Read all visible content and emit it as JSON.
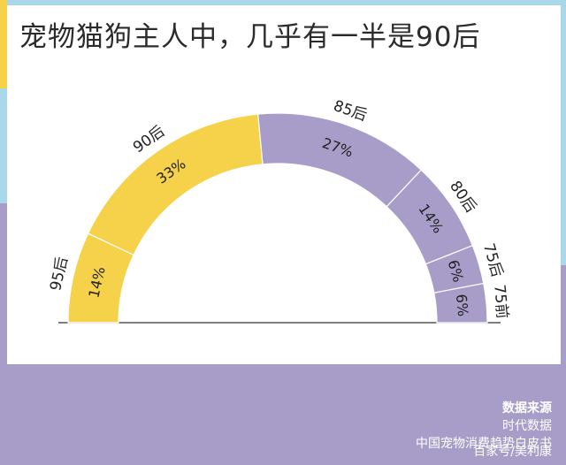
{
  "title": "宠物猫狗主人中，几乎有一半是90后",
  "chart_data": {
    "type": "pie",
    "title": "宠物猫狗主人中，几乎有一半是90后",
    "slices": [
      {
        "label": "95后",
        "value": 14,
        "value_label": "14%",
        "color": "#f5d24a"
      },
      {
        "label": "90后",
        "value": 33,
        "value_label": "33%",
        "color": "#f5d24a"
      },
      {
        "label": "85后",
        "value": 27,
        "value_label": "27%",
        "color": "#a79dc8"
      },
      {
        "label": "80后",
        "value": 14,
        "value_label": "14%",
        "color": "#a79dc8"
      },
      {
        "label": "75后",
        "value": 6,
        "value_label": "6%",
        "color": "#a79dc8"
      },
      {
        "label": "75前",
        "value": 6,
        "value_label": "6%",
        "color": "#a79dc8"
      }
    ]
  },
  "source": {
    "heading": "数据来源",
    "line1": "时代数据",
    "line2": "中国宠物消费趋势白皮书"
  },
  "watermark": "百家号/美利康"
}
